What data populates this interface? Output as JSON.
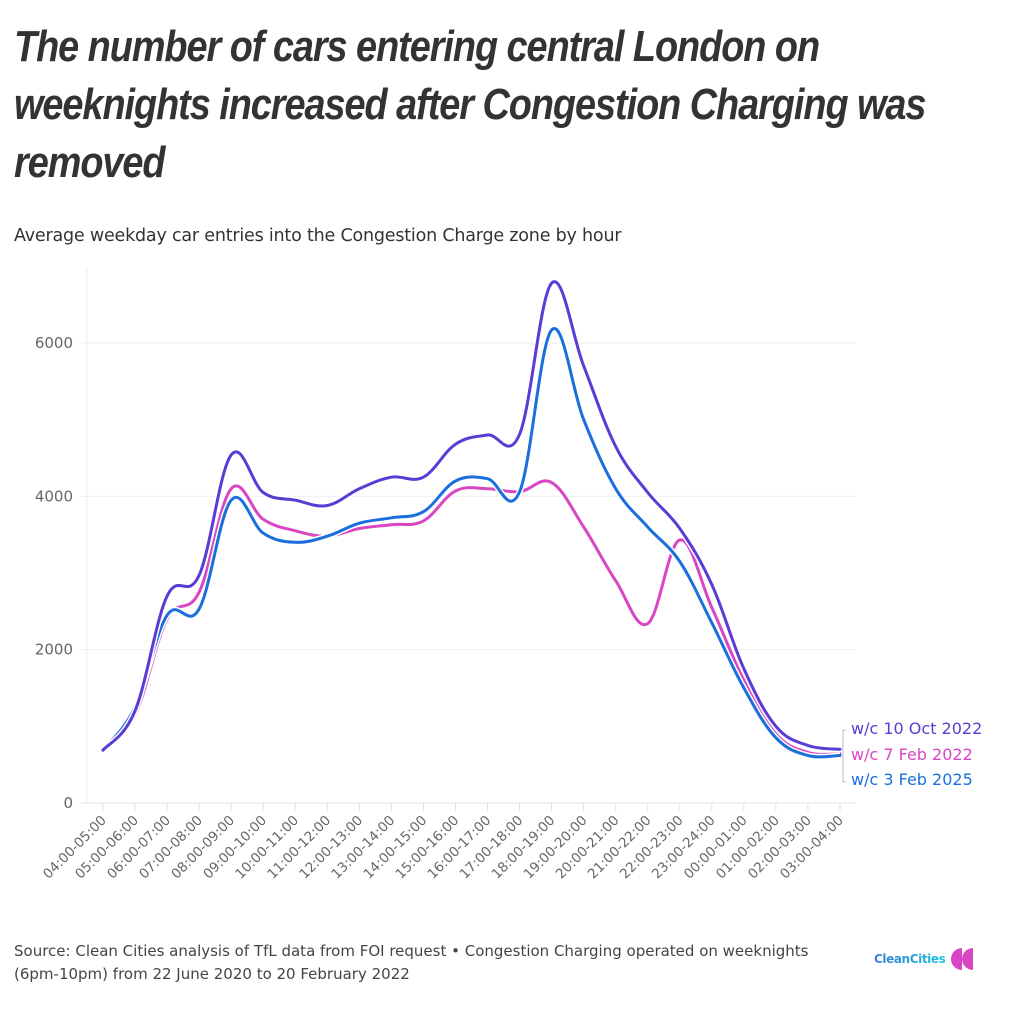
{
  "header": {
    "title": "The number of cars entering central London on weeknights increased after Congestion Charging was removed",
    "subtitle": "Average weekday car entries into the Congestion Charge zone by hour"
  },
  "footer": {
    "source": "Source: Clean Cities analysis of TfL data from FOI request • Congestion Charging operated on weeknights (6pm-10pm) from 22 June 2020 to 20 February 2022",
    "logo_text": "CleanCities",
    "logo_icon": "double-quote-icon",
    "logo_text_color": "#1fa6e0",
    "logo_icon_color": "#d946c4"
  },
  "chart_data": {
    "type": "line",
    "title": "The number of cars entering central London on weeknights increased after Congestion Charging was removed",
    "subtitle": "Average weekday car entries into the Congestion Charge zone by hour",
    "xlabel": "",
    "ylabel": "",
    "ylim": [
      0,
      6900
    ],
    "yticks": [
      0,
      2000,
      4000,
      6000
    ],
    "grid": true,
    "legend_placement": "right-end-labels",
    "categories": [
      "04:00-05:00",
      "05:00-06:00",
      "06:00-07:00",
      "07:00-08:00",
      "08:00-09:00",
      "09:00-10:00",
      "10:00-11:00",
      "11:00-12:00",
      "12:00-13:00",
      "13:00-14:00",
      "14:00-15:00",
      "15:00-16:00",
      "16:00-17:00",
      "17:00-18:00",
      "18:00-19:00",
      "19:00-20:00",
      "20:00-21:00",
      "21:00-22:00",
      "22:00-23:00",
      "23:00-24:00",
      "00:00-01:00",
      "01:00-02:00",
      "02:00-03:00",
      "03:00-04:00"
    ],
    "series": [
      {
        "name": "w/c 10 Oct 2022",
        "color": "#5b3bd6",
        "values": [
          690,
          1200,
          2700,
          2970,
          4540,
          4050,
          3950,
          3880,
          4100,
          4250,
          4250,
          4680,
          4800,
          4810,
          6780,
          5700,
          4650,
          4050,
          3580,
          2850,
          1750,
          1000,
          750,
          700
        ]
      },
      {
        "name": "w/c 7 Feb 2022",
        "color": "#d946c4",
        "values": [
          690,
          1150,
          2400,
          2750,
          4100,
          3700,
          3550,
          3480,
          3580,
          3630,
          3680,
          4070,
          4100,
          4060,
          4180,
          3600,
          2900,
          2340,
          3430,
          2550,
          1600,
          900,
          660,
          640
        ]
      },
      {
        "name": "w/c 3 Feb 2025",
        "color": "#1a6fdc",
        "values": [
          690,
          1250,
          2450,
          2530,
          3950,
          3520,
          3400,
          3480,
          3650,
          3720,
          3800,
          4200,
          4230,
          4060,
          6170,
          5000,
          4100,
          3600,
          3150,
          2350,
          1500,
          850,
          620,
          620
        ]
      }
    ]
  }
}
